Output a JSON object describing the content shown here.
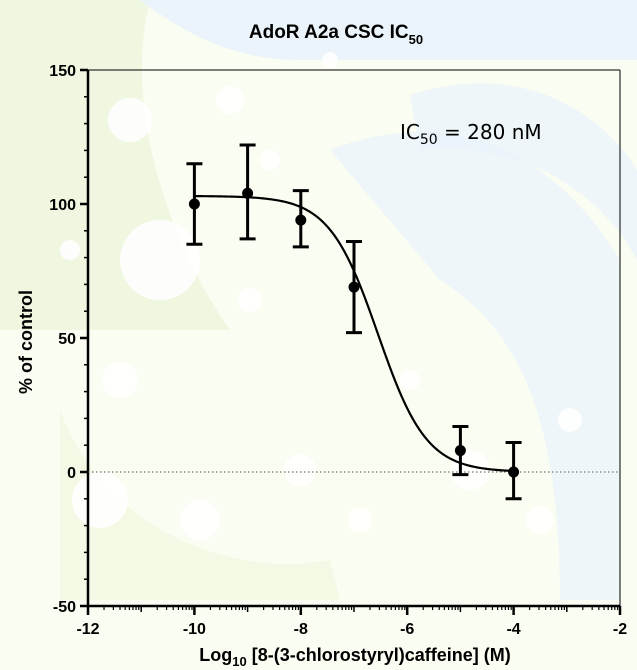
{
  "chart_data": {
    "type": "scatter",
    "title": "AdoR A2a CSC IC",
    "title_sub": "50",
    "xlabel_prefix": "Log",
    "xlabel_sub": "10",
    "xlabel_rest": " [8-(3-chlorostyryl)caffeine] (M)",
    "ylabel": "% of control",
    "xlim": [
      -12,
      -2
    ],
    "ylim": [
      -50,
      150
    ],
    "x_ticks": [
      "-12",
      "-10",
      "-8",
      "-6",
      "-4",
      "-2"
    ],
    "y_ticks": [
      "-50",
      "0",
      "50",
      "100",
      "150"
    ],
    "annotation": {
      "prefix": "IC",
      "sub": "50",
      "rest": " = 280 nM"
    },
    "series": [
      {
        "points": [
          {
            "x": -10,
            "y": 100,
            "err_lo": 85,
            "err_hi": 115
          },
          {
            "x": -9,
            "y": 104,
            "err_lo": 87,
            "err_hi": 122
          },
          {
            "x": -8,
            "y": 94,
            "err_lo": 84,
            "err_hi": 105
          },
          {
            "x": -7,
            "y": 69,
            "err_lo": 52,
            "err_hi": 86
          },
          {
            "x": -5,
            "y": 8,
            "err_lo": -1,
            "err_hi": 17
          },
          {
            "x": -4,
            "y": 0,
            "err_lo": -10,
            "err_hi": 11
          }
        ]
      }
    ],
    "fit": {
      "top": 103,
      "bottom": 0,
      "log_ic50": -6.55,
      "hill_slope": -0.95,
      "x_range": [
        -10,
        -4
      ]
    },
    "grid": false,
    "reference_line_y": 0,
    "colors": {
      "marks": "#000000",
      "reference_line": "#555555",
      "background_tint": "#fafdf2",
      "decor_blue": "#e9f3fb",
      "decor_green": "#eef5dc"
    }
  }
}
